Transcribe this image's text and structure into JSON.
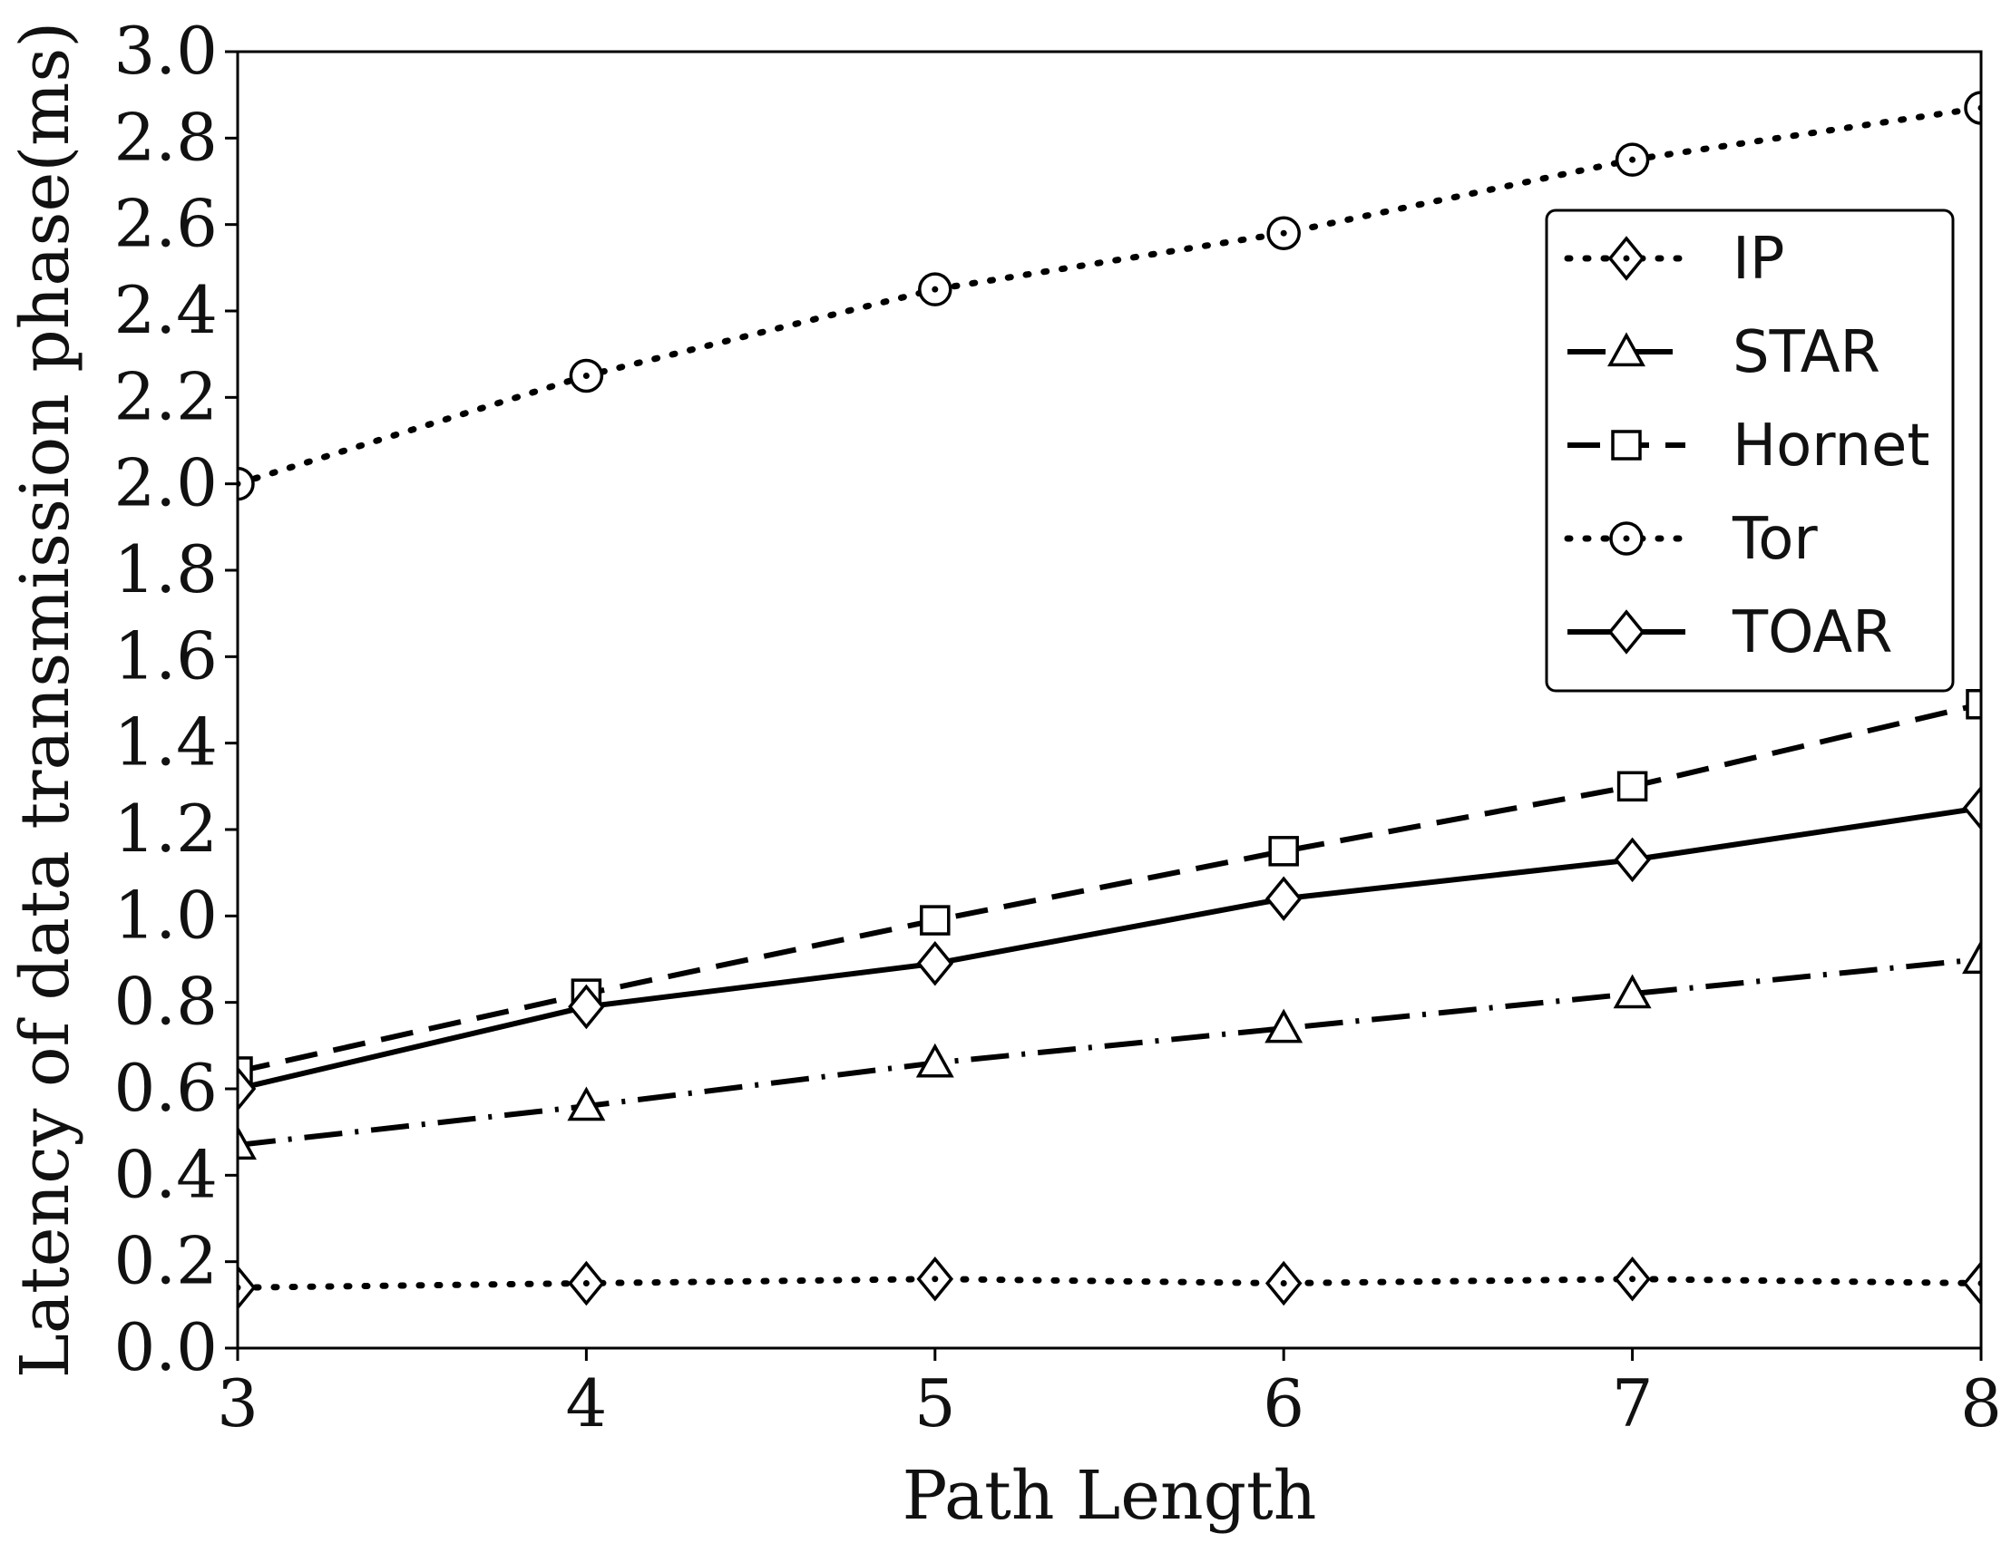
{
  "chart_data": {
    "type": "line",
    "xlabel": "Path Length",
    "ylabel": "Latency of data transmission phase(ms)",
    "x": [
      3,
      4,
      5,
      6,
      7,
      8
    ],
    "xticks": [
      "3",
      "4",
      "5",
      "6",
      "7",
      "8"
    ],
    "yticks": [
      "0.0",
      "0.2",
      "0.4",
      "0.6",
      "0.8",
      "1.0",
      "1.2",
      "1.4",
      "1.6",
      "1.8",
      "2.0",
      "2.2",
      "2.4",
      "2.6",
      "2.8",
      "3.0"
    ],
    "xlim": [
      3,
      8
    ],
    "ylim": [
      0,
      3.0
    ],
    "grid": false,
    "legend_position": "top-right",
    "series": [
      {
        "name": "IP",
        "line_style": "dotted",
        "marker": "diamond-dot",
        "values": [
          0.14,
          0.15,
          0.16,
          0.15,
          0.16,
          0.15
        ]
      },
      {
        "name": "STAR",
        "line_style": "dash-dot",
        "marker": "triangle",
        "values": [
          0.47,
          0.56,
          0.66,
          0.74,
          0.82,
          0.9
        ]
      },
      {
        "name": "Hornet",
        "line_style": "dashed",
        "marker": "square",
        "values": [
          0.64,
          0.82,
          0.99,
          1.15,
          1.3,
          1.49
        ]
      },
      {
        "name": "Tor",
        "line_style": "dotted",
        "marker": "circle-dot",
        "values": [
          2.0,
          2.25,
          2.45,
          2.58,
          2.75,
          2.87
        ]
      },
      {
        "name": "TOAR",
        "line_style": "solid",
        "marker": "diamond",
        "values": [
          0.6,
          0.79,
          0.89,
          1.04,
          1.13,
          1.25
        ]
      }
    ]
  }
}
